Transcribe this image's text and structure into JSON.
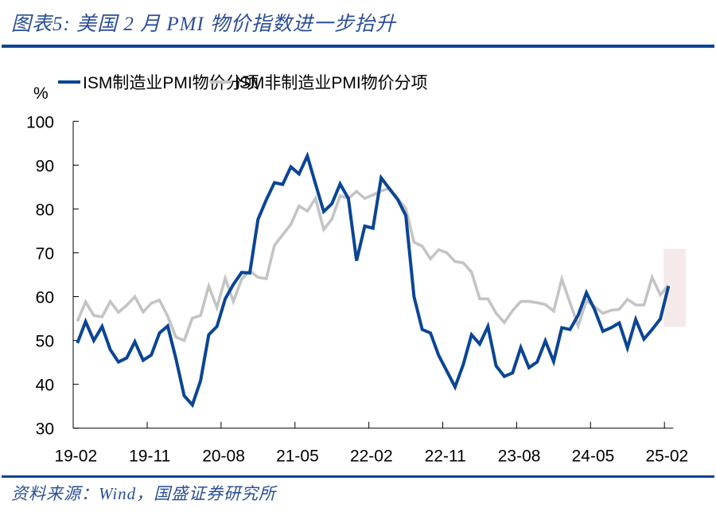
{
  "header": {
    "title": "图表5:  美国 2 月 PMI 物价指数进一步抬升"
  },
  "footer": {
    "source": "资料来源：Wind，国盛证券研究所"
  },
  "colors": {
    "accent": "#0b4595",
    "manufacturing": "#0b4595",
    "services": "#c4c4c4",
    "highlight": "#f5eaea"
  },
  "chart_data": {
    "type": "line",
    "ylabel": "%",
    "ylim": [
      30,
      100
    ],
    "yticks": [
      100,
      90,
      80,
      70,
      60,
      50,
      40,
      30
    ],
    "xticks": [
      "19-02",
      "19-11",
      "20-08",
      "21-05",
      "22-02",
      "22-11",
      "23-08",
      "24-05",
      "25-02"
    ],
    "x_start": "2019-02",
    "x_end": "2025-02",
    "frequency": "monthly",
    "grid": false,
    "legend": "top",
    "highlight_last_point": true,
    "series": [
      {
        "name": "ISM制造业PMI物价分项",
        "color": "#0b4595",
        "values": [
          49.4,
          54.3,
          50.0,
          53.2,
          47.9,
          45.1,
          46.0,
          49.7,
          45.5,
          46.7,
          51.7,
          53.3,
          45.9,
          37.4,
          35.3,
          40.8,
          51.3,
          53.2,
          59.5,
          62.8,
          65.5,
          65.4,
          77.6,
          82.1,
          86.0,
          85.6,
          89.6,
          88.0,
          92.1,
          85.7,
          79.4,
          81.2,
          85.7,
          82.4,
          68.2,
          76.1,
          75.6,
          87.1,
          84.6,
          82.2,
          78.5,
          60.0,
          52.5,
          51.7,
          46.6,
          43.0,
          39.4,
          44.5,
          51.3,
          49.2,
          53.2,
          44.2,
          41.8,
          42.6,
          48.4,
          43.8,
          45.1,
          49.9,
          45.2,
          52.9,
          52.5,
          55.8,
          60.9,
          57.0,
          52.1,
          52.9,
          54.0,
          48.3,
          54.8,
          50.3,
          52.5,
          54.9,
          62.4
        ]
      },
      {
        "name": "ISM非制造业PMI物价分项",
        "color": "#c4c4c4",
        "values": [
          54.4,
          58.8,
          55.7,
          55.4,
          58.9,
          56.4,
          58.0,
          60.0,
          56.5,
          58.5,
          59.2,
          55.5,
          50.8,
          50.0,
          55.1,
          55.7,
          62.4,
          57.5,
          64.2,
          58.9,
          64.0,
          65.9,
          64.4,
          64.1,
          71.7,
          74.1,
          76.5,
          80.7,
          79.5,
          82.4,
          75.3,
          77.7,
          83.0,
          82.4,
          84.0,
          82.4,
          83.2,
          84.1,
          84.7,
          82.4,
          80.1,
          72.4,
          71.5,
          68.6,
          70.7,
          70.0,
          68.0,
          67.7,
          65.6,
          59.5,
          59.5,
          56.2,
          54.1,
          56.8,
          58.9,
          58.9,
          58.6,
          58.2,
          56.7,
          64.0,
          58.6,
          53.3,
          59.1,
          57.7,
          56.2,
          56.9,
          57.1,
          59.4,
          58.1,
          58.1,
          64.4,
          60.4,
          62.6
        ]
      }
    ]
  }
}
